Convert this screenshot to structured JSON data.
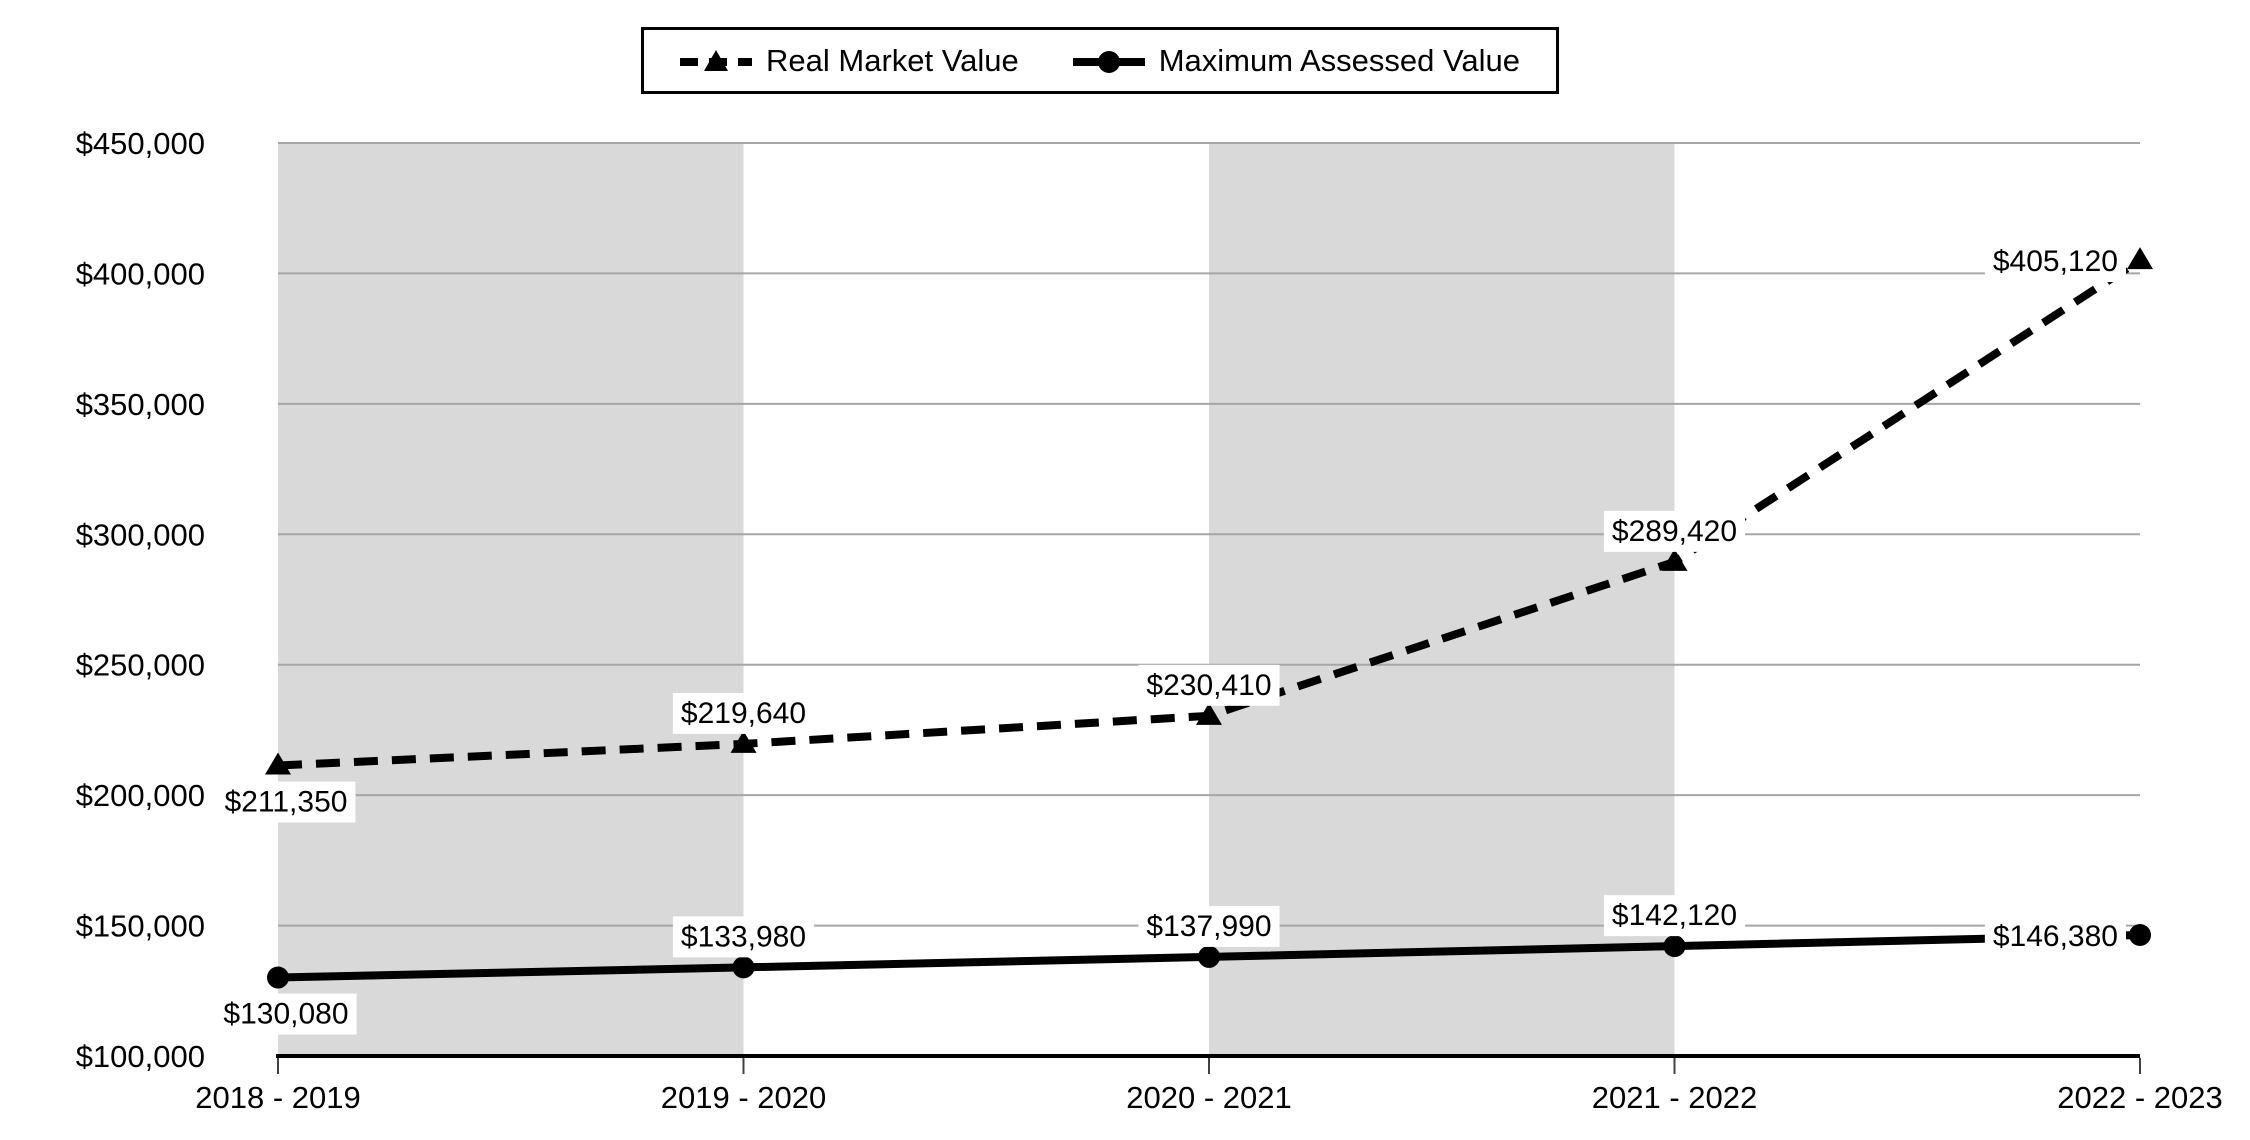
{
  "chart_data": {
    "type": "line",
    "categories": [
      "2018 - 2019",
      "2019 - 2020",
      "2020 - 2021",
      "2021 - 2022",
      "2022 - 2023"
    ],
    "series": [
      {
        "name": "Real Market Value",
        "line_style": "dashed",
        "marker": "triangle",
        "color": "#000000",
        "values": [
          211350,
          219640,
          230410,
          289420,
          405120
        ],
        "data_labels": [
          "$211,350",
          "$219,640",
          "$230,410",
          "$289,420",
          "$405,120"
        ],
        "label_positions": [
          "below",
          "above",
          "above",
          "above",
          "left"
        ]
      },
      {
        "name": "Maximum Assessed Value",
        "line_style": "solid",
        "marker": "circle",
        "color": "#000000",
        "values": [
          130080,
          133980,
          137990,
          142120,
          146380
        ],
        "data_labels": [
          "$130,080",
          "$133,980",
          "$137,990",
          "$142,120",
          "$146,380"
        ],
        "label_positions": [
          "below",
          "above",
          "above",
          "above",
          "left"
        ]
      }
    ],
    "y_axis": {
      "min": 100000,
      "max": 450000,
      "step": 50000,
      "tick_labels": [
        "$100,000",
        "$150,000",
        "$200,000",
        "$250,000",
        "$300,000",
        "$350,000",
        "$400,000",
        "$450,000"
      ]
    },
    "x_axis": {
      "tick_marks": true
    },
    "grid": true,
    "legend_position": "top-center",
    "plot_bands": {
      "color": "#d9d9d9",
      "column_pairs": [
        [
          0,
          1
        ],
        [
          2,
          3
        ]
      ]
    }
  },
  "legend": {
    "items": [
      {
        "label": "Real Market Value"
      },
      {
        "label": "Maximum Assessed Value"
      }
    ]
  },
  "colors": {
    "background": "#ffffff",
    "band": "#d9d9d9",
    "gridline": "#a6a6a6",
    "axis": "#000000",
    "tick": "#404040",
    "text": "#000000",
    "data_label_background": "#ffffff"
  }
}
